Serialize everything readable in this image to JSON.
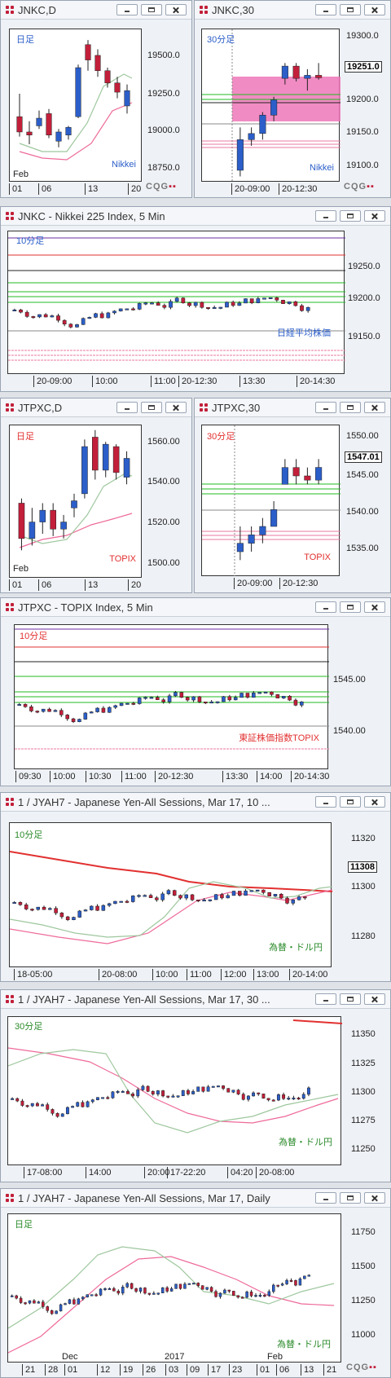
{
  "colors": {
    "up": "#2b5ec9",
    "down": "#c21f3a",
    "ma_green": "#9ec79e",
    "ma_pink": "#ee6a9a",
    "res_red": "#e23030",
    "sup_green": "#22bb22",
    "hline_black": "#222222"
  },
  "panels": {
    "jnkc_d": {
      "title": "JNKC,D",
      "period": "日足",
      "name": "Nikkei",
      "y_labels": [
        "19500.0",
        "19250.0",
        "19000.0",
        "18750.0"
      ],
      "x_labels": [
        "01",
        "06",
        "13",
        "20"
      ],
      "month_label": "Feb"
    },
    "jnkc_30": {
      "title": "JNKC,30",
      "period": "30分足",
      "name": "Nikkei",
      "y_labels": [
        "19300.0",
        "19200.0",
        "19150.0",
        "19100.0"
      ],
      "current": "19251.0",
      "x_labels": [
        "20-09:00",
        "20-12:30"
      ]
    },
    "jnkc_5": {
      "title": "JNKC - Nikkei 225 Index, 5 Min",
      "period": "10分足",
      "name": "日経平均株価",
      "y_labels": [
        "19250.0",
        "19200.0",
        "19150.0"
      ],
      "x_labels": [
        "20-09:00",
        "10:00",
        "11:00",
        "20-12:30",
        "13:30",
        "20-14:30"
      ]
    },
    "jtpxc_d": {
      "title": "JTPXC,D",
      "period": "日足",
      "name": "TOPIX",
      "y_labels": [
        "1560.00",
        "1540.00",
        "1520.00",
        "1500.00"
      ],
      "x_labels": [
        "01",
        "06",
        "13",
        "20"
      ],
      "month_label": "Feb"
    },
    "jtpxc_30": {
      "title": "JTPXC,30",
      "period": "30分足",
      "name": "TOPIX",
      "y_labels": [
        "1550.00",
        "1545.00",
        "1540.00",
        "1535.00"
      ],
      "current": "1547.01",
      "x_labels": [
        "20-09:00",
        "20-12:30"
      ]
    },
    "jtpxc_5": {
      "title": "JTPXC - TOPIX Index, 5 Min",
      "period": "10分足",
      "name": "東証株価指数TOPIX",
      "y_labels": [
        "1545.00",
        "1540.00"
      ],
      "x_labels": [
        "09:30",
        "10:00",
        "10:30",
        "11:00",
        "20-12:30",
        "13:30",
        "14:00",
        "20-14:30"
      ]
    },
    "jyah7_10": {
      "title": "1 / JYAH7 - Japanese Yen-All Sessions, Mar 17, 10 ...",
      "period": "10分足",
      "name": "為替・ドル円",
      "y_labels": [
        "11320",
        "11300",
        "11280"
      ],
      "current": "11308",
      "x_labels": [
        "18-05:00",
        "20-08:00",
        "10:00",
        "11:00",
        "12:00",
        "13:00",
        "20-14:00"
      ]
    },
    "jyah7_30": {
      "title": "1 / JYAH7 - Japanese Yen-All Sessions, Mar 17, 30 ...",
      "period": "30分足",
      "name": "為替・ドル円",
      "y_labels": [
        "11350",
        "11325",
        "11300",
        "11275",
        "11250"
      ],
      "x_labels": [
        "17-08:00",
        "14:00",
        "20:00",
        "17-22:20",
        "04:20",
        "20-08:00"
      ]
    },
    "jyah7_d": {
      "title": "1 / JYAH7 - Japanese Yen-All Sessions, Mar 17, Daily",
      "period": "日足",
      "name": "為替・ドル円",
      "y_labels": [
        "11750",
        "11500",
        "11250",
        "11000"
      ],
      "x_labels": [
        "21",
        "28",
        "01",
        "12",
        "19",
        "26",
        "03",
        "09",
        "17",
        "23",
        "01",
        "06",
        "13",
        "21"
      ],
      "top_labels": [
        "Dec",
        "2017",
        "Feb"
      ]
    }
  },
  "chart_data": [
    {
      "type": "candlestick",
      "panel": "JNKC,D",
      "ylim": [
        18650,
        19650
      ],
      "candles": [
        [
          19080,
          19230,
          18950,
          18980
        ],
        [
          18980,
          19050,
          18900,
          18960
        ],
        [
          19020,
          19120,
          19000,
          19070
        ],
        [
          19100,
          19130,
          18940,
          18960
        ],
        [
          18920,
          19000,
          18880,
          18980
        ],
        [
          18960,
          19020,
          18930,
          19010
        ],
        [
          19080,
          19420,
          19070,
          19400
        ],
        [
          19550,
          19580,
          19380,
          19450
        ],
        [
          19480,
          19520,
          19340,
          19380
        ],
        [
          19380,
          19400,
          19270,
          19300
        ],
        [
          19300,
          19340,
          19200,
          19240
        ],
        [
          19150,
          19290,
          19100,
          19250
        ]
      ]
    },
    {
      "type": "candlestick",
      "panel": "JNKC,30",
      "ylim": [
        19080,
        19330
      ],
      "candles": [
        [
          19100,
          19170,
          19090,
          19150
        ],
        [
          19150,
          19170,
          19140,
          19160
        ],
        [
          19160,
          19195,
          19150,
          19190
        ],
        [
          19190,
          19220,
          19180,
          19215
        ],
        [
          19250,
          19275,
          19240,
          19270
        ],
        [
          19270,
          19275,
          19245,
          19250
        ],
        [
          19250,
          19265,
          19230,
          19255
        ],
        [
          19255,
          19275,
          19248,
          19251
        ]
      ]
    },
    {
      "type": "candlestick",
      "panel": "JNKC 5min",
      "ylim": [
        19115,
        19285
      ],
      "candle_count": 48
    },
    {
      "type": "candlestick",
      "panel": "JTPXC,D",
      "ylim": [
        1498,
        1563
      ],
      "candles": [
        [
          1530,
          1532,
          1510,
          1515
        ],
        [
          1515,
          1528,
          1512,
          1522
        ],
        [
          1522,
          1530,
          1517,
          1527
        ],
        [
          1527,
          1530,
          1516,
          1519
        ],
        [
          1519,
          1525,
          1515,
          1522
        ],
        [
          1528,
          1534,
          1524,
          1531
        ],
        [
          1534,
          1557,
          1532,
          1554
        ],
        [
          1558,
          1561,
          1540,
          1544
        ],
        [
          1544,
          1556,
          1541,
          1555
        ],
        [
          1554,
          1555,
          1540,
          1543
        ],
        [
          1541,
          1552,
          1538,
          1549
        ]
      ]
    },
    {
      "type": "candlestick",
      "panel": "JTPXC,30",
      "ylim": [
        1534,
        1552
      ],
      "candles": [
        [
          1537,
          1540,
          1536,
          1538
        ],
        [
          1538,
          1540,
          1537,
          1539
        ],
        [
          1539,
          1541,
          1538,
          1540
        ],
        [
          1540,
          1543,
          1540,
          1542
        ],
        [
          1545,
          1548,
          1545,
          1547
        ],
        [
          1547,
          1548,
          1545,
          1546
        ],
        [
          1546,
          1547,
          1545,
          1545.5
        ],
        [
          1545.5,
          1548,
          1545,
          1547.01
        ]
      ]
    },
    {
      "type": "candlestick",
      "panel": "JTPXC 5min",
      "ylim": [
        1537,
        1550
      ],
      "candle_count": 48
    },
    {
      "type": "candlestick",
      "panel": "JYAH7 10min",
      "ylim": [
        11262,
        11330
      ],
      "candle_count": 50
    },
    {
      "type": "candlestick",
      "panel": "JYAH7 30min",
      "ylim": [
        11240,
        11365
      ],
      "candle_count": 60
    },
    {
      "type": "candlestick",
      "panel": "JYAH7 Daily",
      "ylim": [
        10950,
        11820
      ],
      "candle_count": 68
    }
  ]
}
